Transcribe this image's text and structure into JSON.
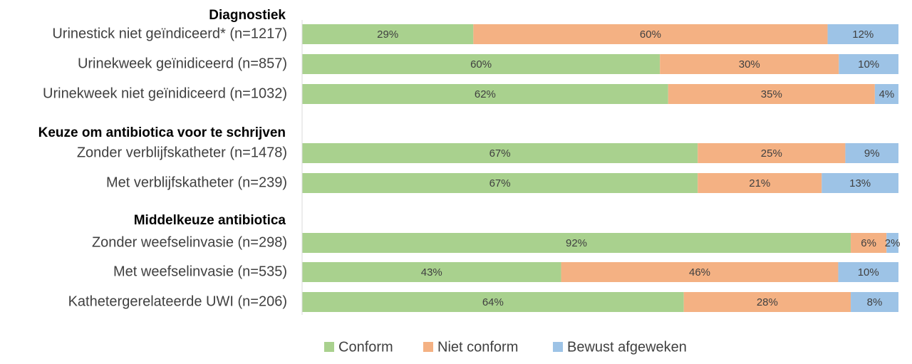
{
  "chart_data": {
    "type": "bar",
    "orientation": "horizontal",
    "stacked": true,
    "percent_stacked": true,
    "groups": [
      {
        "title": "Diagnostiek",
        "rows": [
          {
            "label": "Urinestick niet geïndiceerd* (n=1217)",
            "values": [
              29,
              60,
              12
            ]
          },
          {
            "label": "Urinekweek geïnidiceerd (n=857)",
            "values": [
              60,
              30,
              10
            ]
          },
          {
            "label": "Urinekweek niet geïnidiceerd (n=1032)",
            "values": [
              62,
              35,
              4
            ]
          }
        ]
      },
      {
        "title": "Keuze om antibiotica voor te schrijven",
        "rows": [
          {
            "label": "Zonder verblijfskatheter (n=1478)",
            "values": [
              67,
              25,
              9
            ]
          },
          {
            "label": "Met verblijfskatheter (n=239)",
            "values": [
              67,
              21,
              13
            ]
          }
        ]
      },
      {
        "title": "Middelkeuze antibiotica",
        "rows": [
          {
            "label": "Zonder weefselinvasie (n=298)",
            "values": [
              92,
              6,
              2
            ]
          },
          {
            "label": "Met weefselinvasie (n=535)",
            "values": [
              43,
              46,
              10
            ]
          },
          {
            "label": "Kathetergerelateerde UWI (n=206)",
            "values": [
              64,
              28,
              8
            ]
          }
        ]
      }
    ],
    "series": [
      {
        "name": "Conform",
        "color": "#a9d18e"
      },
      {
        "name": "Niet conform",
        "color": "#f4b183"
      },
      {
        "name": "Bewust afgeweken",
        "color": "#9dc3e6"
      }
    ],
    "value_suffix": "%",
    "legend_position": "bottom"
  }
}
